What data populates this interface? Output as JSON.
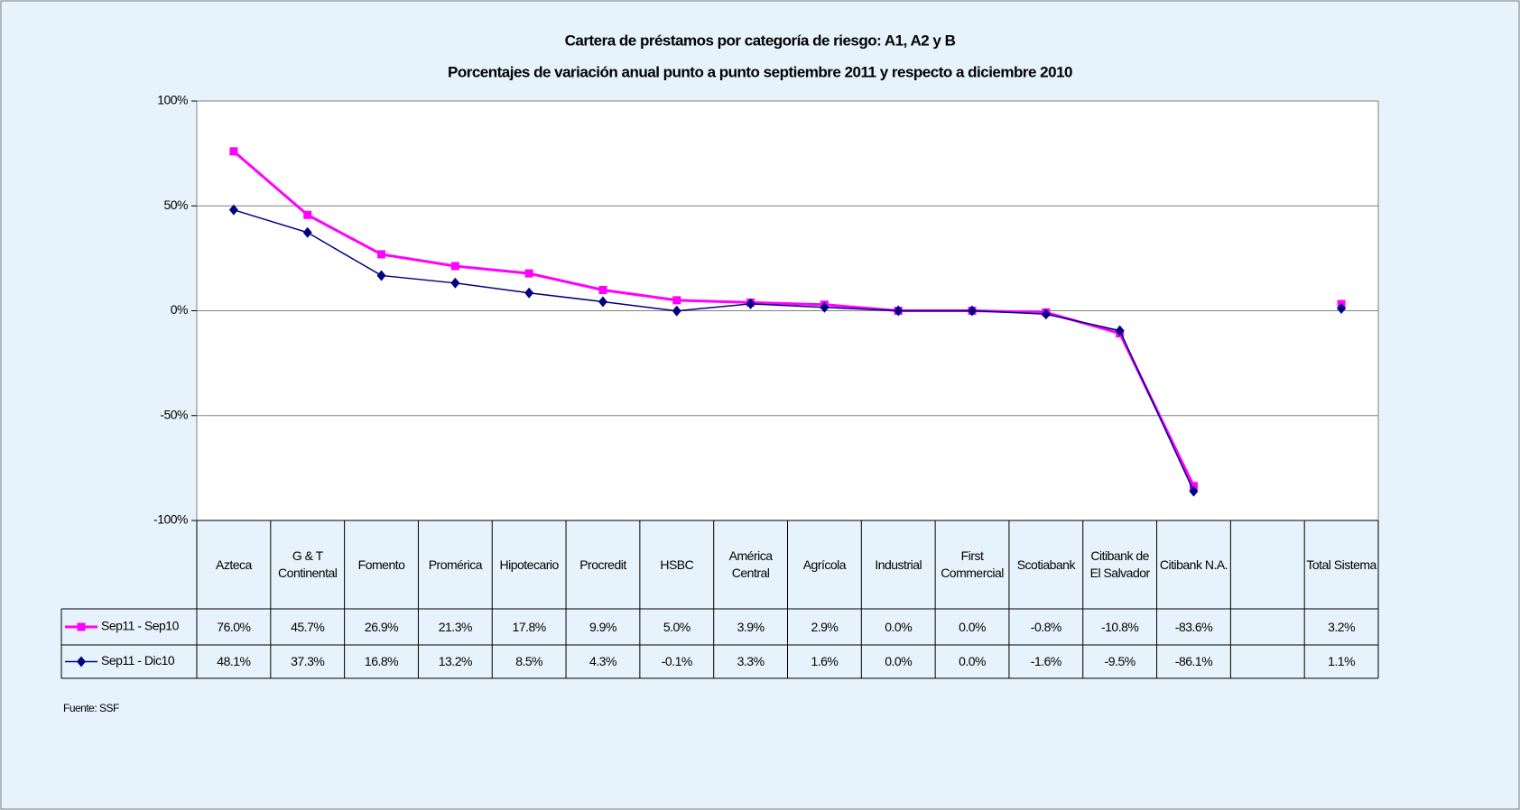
{
  "chart_data": {
    "type": "line",
    "title": "Cartera de préstamos por categoría de riesgo: A1, A2 y B",
    "subtitle": "Porcentajes de variación anual punto a punto septiembre 2011 y respecto a diciembre 2010",
    "categories": [
      "Azteca",
      "G & T Continental",
      "Fomento",
      "Promérica",
      "Hipotecario",
      "Procredit",
      "HSBC",
      "América Central",
      "Agrícola",
      "Industrial",
      "First Commercial",
      "Scotiabank",
      "Citibank de El Salvador",
      "Citibank N.A.",
      null,
      "Total Sistema"
    ],
    "series": [
      {
        "name": "Sep11 - Sep10",
        "color": "#ff00ff",
        "marker": "square",
        "values": [
          76.0,
          45.7,
          26.9,
          21.3,
          17.8,
          9.9,
          5.0,
          3.9,
          2.9,
          0.0,
          0.0,
          -0.8,
          -10.8,
          -83.6,
          null,
          3.2
        ],
        "value_labels": [
          "76.0%",
          "45.7%",
          "26.9%",
          "21.3%",
          "17.8%",
          "9.9%",
          "5.0%",
          "3.9%",
          "2.9%",
          "0.0%",
          "0.0%",
          "-0.8%",
          "-10.8%",
          "-83.6%",
          null,
          "3.2%"
        ]
      },
      {
        "name": "Sep11 - Dic10",
        "color": "#000080",
        "marker": "diamond",
        "values": [
          48.1,
          37.3,
          16.8,
          13.2,
          8.5,
          4.3,
          -0.1,
          3.3,
          1.6,
          0.0,
          0.0,
          -1.6,
          -9.5,
          -86.1,
          null,
          1.1
        ],
        "value_labels": [
          "48.1%",
          "37.3%",
          "16.8%",
          "13.2%",
          "8.5%",
          "4.3%",
          "-0.1%",
          "3.3%",
          "1.6%",
          "0.0%",
          "0.0%",
          "-1.6%",
          "-9.5%",
          "-86.1%",
          null,
          "1.1%"
        ]
      }
    ],
    "ylim": [
      -100,
      100
    ],
    "yticks": [
      {
        "value": -100,
        "label": "-100%"
      },
      {
        "value": -50,
        "label": "-50%"
      },
      {
        "value": 0,
        "label": "0%"
      },
      {
        "value": 50,
        "label": "50%"
      },
      {
        "value": 100,
        "label": "100%"
      }
    ],
    "grid": true,
    "source": "Fuente: SSF"
  }
}
